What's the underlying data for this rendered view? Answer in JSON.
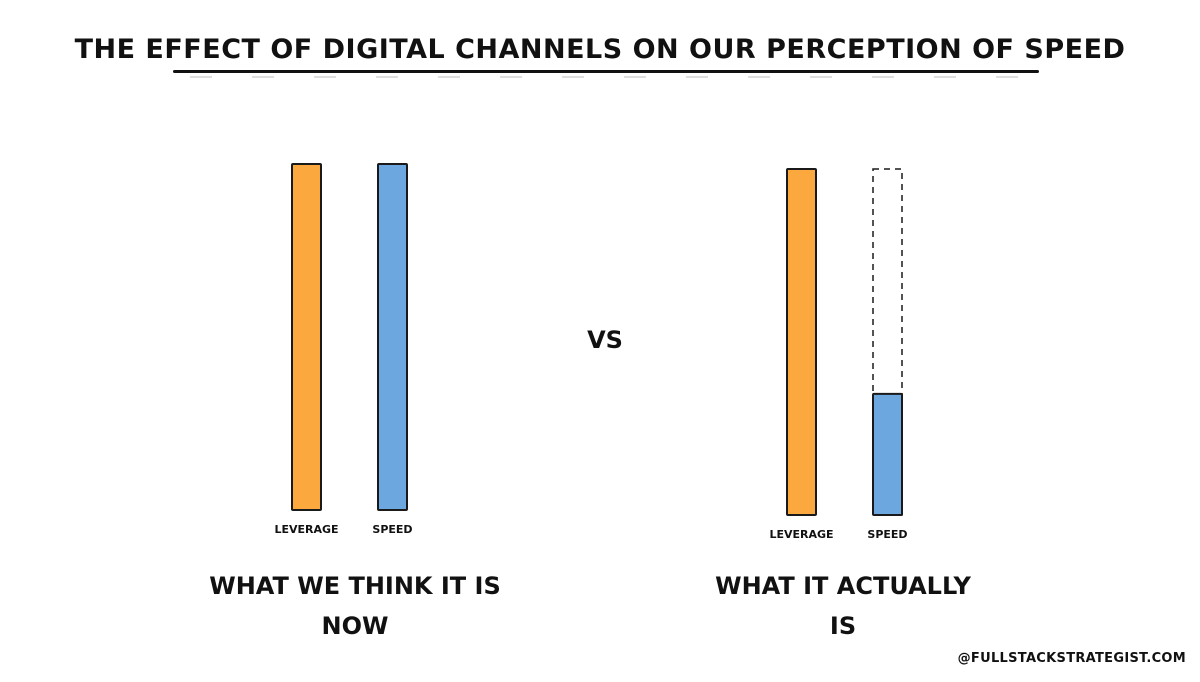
{
  "title": "THE EFFECT OF DIGITAL CHANNELS ON OUR PERCEPTION OF SPEED",
  "vs_label": "VS",
  "credit": "@FULLSTACKSTRATEGIST.COM",
  "colors": {
    "leverage": "#FBA83F",
    "speed": "#6CA7DF",
    "outline": "#1a1a1a"
  },
  "chart_data": [
    {
      "type": "bar",
      "categories": [
        "LEVERAGE",
        "SPEED"
      ],
      "values": [
        100,
        100
      ],
      "ylim": [
        0,
        100
      ],
      "caption": [
        "WHAT WE THINK IT IS",
        "NOW"
      ]
    },
    {
      "type": "bar",
      "categories": [
        "LEVERAGE",
        "SPEED"
      ],
      "values": [
        100,
        35
      ],
      "ylim": [
        0,
        100
      ],
      "speed_outline_value": 100,
      "caption": [
        "WHAT IT ACTUALLY",
        "IS"
      ]
    }
  ]
}
